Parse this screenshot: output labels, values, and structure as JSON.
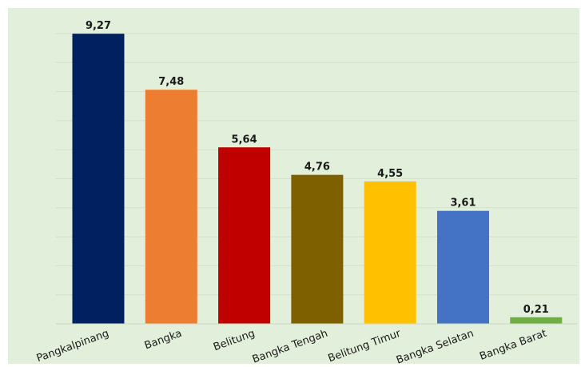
{
  "chart_data": {
    "type": "bar",
    "categories": [
      "Pangkalpinang",
      "Bangka",
      "Belitung",
      "Bangka Tengah",
      "Belitung Timur",
      "Bangka Selatan",
      "Bangka Barat"
    ],
    "values": [
      9.27,
      7.48,
      5.64,
      4.76,
      4.55,
      3.61,
      0.21
    ],
    "value_labels": [
      "9,27",
      "7,48",
      "5,64",
      "4,76",
      "4,55",
      "3,61",
      "0,21"
    ],
    "colors": [
      "#002060",
      "#ED7D31",
      "#C00000",
      "#7F6000",
      "#FFC000",
      "#4472C4",
      "#70AD47"
    ],
    "background_color": "#E2EFDA",
    "gridline_color": "#D4E2CB",
    "ylim": [
      0,
      9.3
    ],
    "grid": true,
    "legend": "none",
    "tick_label_rotation_deg": -20
  }
}
